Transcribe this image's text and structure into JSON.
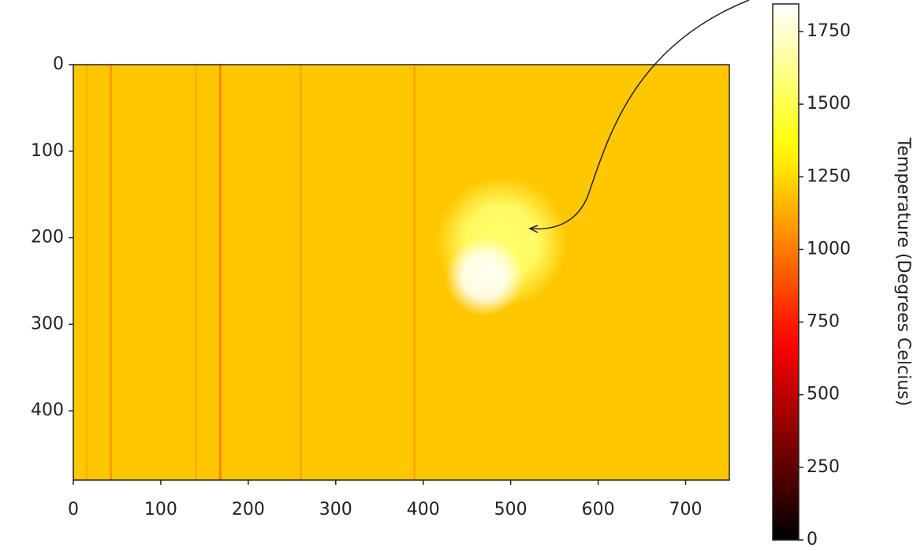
{
  "chart_data": {
    "type": "heatmap",
    "colormap": "hot",
    "xlim": [
      0,
      750
    ],
    "ylim": [
      480,
      0
    ],
    "xticks": [
      0,
      100,
      200,
      300,
      400,
      500,
      600,
      700
    ],
    "yticks": [
      0,
      100,
      200,
      300,
      400
    ],
    "background_value": 1200,
    "stripes": [
      {
        "x": 15,
        "value": 1130
      },
      {
        "x": 43,
        "value": 1040
      },
      {
        "x": 140,
        "value": 1130
      },
      {
        "x": 168,
        "value": 990
      },
      {
        "x": 260,
        "value": 1110
      },
      {
        "x": 390,
        "value": 1110
      }
    ],
    "spots": [
      {
        "x": 490,
        "y": 205,
        "value": 1560,
        "radius": 75
      },
      {
        "x": 470,
        "y": 245,
        "value": 1820,
        "radius": 45
      }
    ],
    "colorbar": {
      "label": "Temperature (Degrees Celcius)",
      "lim": [
        0,
        1845
      ],
      "ticks": [
        0,
        250,
        500,
        750,
        1000,
        1250,
        1500,
        1750
      ]
    }
  }
}
